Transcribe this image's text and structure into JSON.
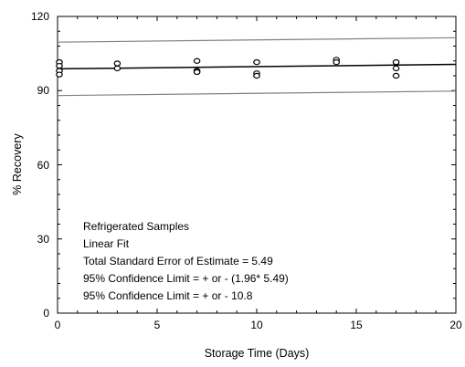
{
  "chart_data": {
    "type": "scatter",
    "xlabel": "Storage Time (Days)",
    "ylabel": "% Recovery",
    "xlim": [
      0,
      20
    ],
    "ylim": [
      0,
      120
    ],
    "x_ticks": [
      "0",
      "5",
      "10",
      "15",
      "20"
    ],
    "y_ticks": [
      "0",
      "30",
      "60",
      "90",
      "120"
    ],
    "grid": false,
    "series": [
      {
        "type": "scatter",
        "x": [
          0,
          0,
          0,
          0,
          3,
          3,
          7,
          7,
          7,
          10,
          10,
          10,
          14,
          14,
          17,
          17,
          17
        ],
        "y": [
          101.5,
          100,
          98,
          96.5,
          101,
          99,
          102,
          98,
          97.5,
          101.5,
          97,
          96,
          102.5,
          101.5,
          101.5,
          99,
          96
        ]
      },
      {
        "type": "line",
        "x": [
          0,
          20
        ],
        "y": [
          98.8,
          100.6
        ]
      },
      {
        "type": "line",
        "x": [
          0,
          20
        ],
        "y": [
          109.6,
          111.4
        ]
      },
      {
        "type": "line",
        "x": [
          0,
          20
        ],
        "y": [
          88,
          89.8
        ]
      }
    ],
    "annotations": [
      "Refrigerated Samples",
      "Linear Fit",
      "Total Standard Error of Estimate = 5.49",
      "95% Confidence Limit = + or - (1.96* 5.49)",
      "95% Confidence Limit = + or - 10.8"
    ],
    "colors": {
      "fit_line": "#000000",
      "confidence_lines": "#808080",
      "markers": "#000000"
    }
  }
}
